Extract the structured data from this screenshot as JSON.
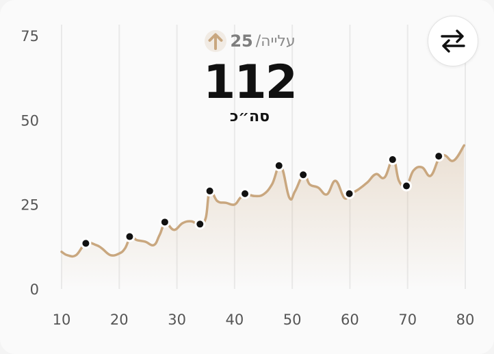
{
  "summary": {
    "change_label": "עלייה/",
    "change_value": "25",
    "total_value": "112",
    "total_label": "סה״כ"
  },
  "icons": {
    "change": "arrow-up-icon",
    "swap": "swap-arrows-icon"
  },
  "colors": {
    "line": "#c9a77f",
    "area": "#c9a77f",
    "marker": "#111111",
    "grid": "#e9e9e9",
    "arrow": "#c9a77f"
  },
  "chart_data": {
    "type": "area",
    "xlim": [
      10,
      80
    ],
    "ylim": [
      0,
      75
    ],
    "x_ticks": [
      "10",
      "20",
      "30",
      "40",
      "50",
      "60",
      "70",
      "80"
    ],
    "y_ticks": [
      "0",
      "25",
      "50",
      "75"
    ],
    "grid": "vertical",
    "series": [
      {
        "x": [
          10,
          11,
          12.5,
          14.2,
          16,
          17,
          18.5,
          20,
          21,
          22,
          23,
          24.5,
          26,
          27,
          28,
          29.5,
          31,
          32.5,
          34,
          35,
          35.7,
          37,
          38.5,
          40,
          41,
          42,
          43.5,
          45,
          46.5,
          48,
          49.5,
          50.5,
          52,
          53,
          54.5,
          56,
          57.5,
          59,
          60,
          61.5,
          63,
          64.5,
          66,
          67.5,
          68.5,
          69.8,
          71,
          72.5,
          74,
          75.5,
          76.5,
          78,
          79.8
        ],
        "y": [
          11,
          10,
          10,
          13.5,
          13,
          12,
          10,
          10.5,
          12,
          15.5,
          14.5,
          14,
          13,
          16,
          19.5,
          17.5,
          19.5,
          20,
          19,
          21,
          29,
          26,
          25.5,
          25,
          27,
          28,
          27.5,
          28,
          31,
          36.5,
          27,
          29,
          34,
          31,
          30,
          28,
          32,
          27,
          28,
          29.5,
          31.5,
          34,
          33,
          38.5,
          32,
          30.5,
          35,
          36,
          33.5,
          39,
          39.5,
          38,
          42.5
        ]
      }
    ],
    "markers": [
      {
        "x": 14.2,
        "y": 13.5
      },
      {
        "x": 21.8,
        "y": 15.5
      },
      {
        "x": 27.9,
        "y": 19.8
      },
      {
        "x": 34.0,
        "y": 19.2
      },
      {
        "x": 35.7,
        "y": 29.0
      },
      {
        "x": 41.8,
        "y": 28.2
      },
      {
        "x": 47.7,
        "y": 36.5
      },
      {
        "x": 51.9,
        "y": 33.8
      },
      {
        "x": 59.9,
        "y": 28.2
      },
      {
        "x": 67.4,
        "y": 38.3
      },
      {
        "x": 69.8,
        "y": 30.5
      },
      {
        "x": 75.4,
        "y": 39.3
      }
    ]
  }
}
